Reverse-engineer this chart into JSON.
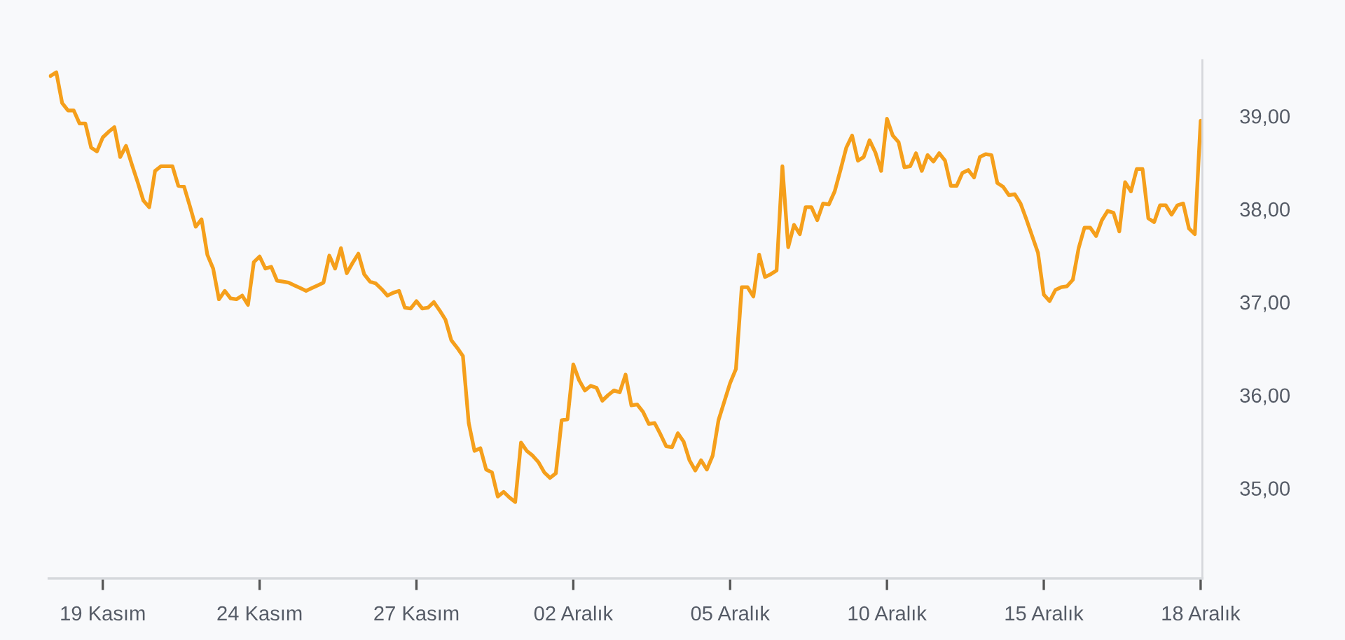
{
  "chart_data": {
    "type": "line",
    "categories": [
      null,
      null,
      null,
      null,
      null,
      null,
      null,
      null,
      null,
      "19 Kasım",
      null,
      null,
      null,
      null,
      null,
      null,
      null,
      null,
      null,
      null,
      null,
      null,
      null,
      null,
      null,
      null,
      null,
      null,
      null,
      null,
      null,
      null,
      null,
      null,
      null,
      null,
      "24 Kasım",
      null,
      null,
      null,
      null,
      null,
      null,
      null,
      null,
      null,
      null,
      null,
      null,
      null,
      null,
      null,
      null,
      null,
      null,
      null,
      null,
      null,
      null,
      null,
      null,
      null,
      null,
      "27 Kasım",
      null,
      null,
      null,
      null,
      null,
      null,
      null,
      null,
      null,
      null,
      null,
      null,
      null,
      null,
      null,
      null,
      null,
      null,
      null,
      null,
      null,
      null,
      null,
      null,
      null,
      null,
      "02 Aralık",
      null,
      null,
      null,
      null,
      null,
      null,
      null,
      null,
      null,
      null,
      null,
      null,
      null,
      null,
      null,
      null,
      null,
      null,
      null,
      null,
      null,
      null,
      null,
      null,
      null,
      null,
      "05 Aralık",
      null,
      null,
      null,
      null,
      null,
      null,
      null,
      null,
      null,
      null,
      null,
      null,
      null,
      null,
      null,
      null,
      null,
      null,
      null,
      null,
      null,
      null,
      null,
      null,
      null,
      null,
      "10 Aralık",
      null,
      null,
      null,
      null,
      null,
      null,
      null,
      null,
      null,
      null,
      null,
      null,
      null,
      null,
      null,
      null,
      null,
      null,
      null,
      null,
      null,
      null,
      null,
      null,
      null,
      null,
      "15 Aralık",
      null,
      null,
      null,
      null,
      null,
      null,
      null,
      null,
      null,
      null,
      null,
      null,
      null,
      null,
      null,
      null,
      null,
      null,
      null,
      null,
      null,
      null,
      null,
      null,
      null,
      null,
      "18 Aralık"
    ],
    "series": [
      {
        "color": "#f59f1b",
        "values": [
          39.43,
          39.47,
          39.14,
          39.06,
          39.06,
          38.92,
          38.92,
          38.66,
          38.62,
          38.77,
          38.83,
          38.88,
          38.56,
          38.68,
          38.48,
          38.29,
          38.09,
          38.02,
          38.41,
          38.46,
          38.46,
          38.46,
          38.25,
          38.24,
          38.03,
          37.81,
          37.89,
          37.51,
          37.36,
          37.03,
          37.12,
          37.04,
          37.03,
          37.07,
          36.97,
          37.43,
          37.49,
          37.36,
          37.38,
          37.23,
          37.22,
          37.21,
          37.18,
          37.15,
          37.12,
          37.15,
          37.18,
          37.21,
          37.5,
          37.36,
          37.58,
          37.31,
          37.42,
          37.52,
          37.3,
          37.22,
          37.2,
          37.14,
          37.07,
          37.1,
          37.12,
          36.94,
          36.93,
          37.01,
          36.93,
          36.94,
          37.0,
          36.91,
          36.81,
          36.59,
          36.51,
          36.42,
          35.7,
          35.4,
          35.43,
          35.2,
          35.17,
          34.91,
          34.96,
          34.9,
          34.85,
          35.49,
          35.4,
          35.35,
          35.28,
          35.17,
          35.11,
          35.16,
          35.73,
          35.74,
          36.33,
          36.16,
          36.05,
          36.1,
          36.08,
          35.94,
          36.0,
          36.05,
          36.03,
          36.22,
          35.89,
          35.9,
          35.82,
          35.69,
          35.7,
          35.58,
          35.45,
          35.44,
          35.59,
          35.5,
          35.3,
          35.19,
          35.3,
          35.2,
          35.35,
          35.73,
          35.93,
          36.13,
          36.28,
          37.16,
          37.16,
          37.06,
          37.51,
          37.27,
          37.3,
          37.34,
          38.46,
          37.59,
          37.83,
          37.73,
          38.02,
          38.02,
          37.88,
          38.06,
          38.05,
          38.19,
          38.42,
          38.66,
          38.79,
          38.52,
          38.56,
          38.74,
          38.61,
          38.41,
          38.97,
          38.79,
          38.72,
          38.45,
          38.46,
          38.6,
          38.41,
          38.58,
          38.51,
          38.6,
          38.52,
          38.25,
          38.25,
          38.39,
          38.42,
          38.34,
          38.56,
          38.59,
          38.58,
          38.28,
          38.24,
          38.15,
          38.16,
          38.06,
          37.89,
          37.71,
          37.53,
          37.08,
          37.01,
          37.13,
          37.16,
          37.17,
          37.24,
          37.58,
          37.8,
          37.8,
          37.71,
          37.88,
          37.98,
          37.96,
          37.76,
          38.29,
          38.19,
          38.43,
          38.43,
          37.9,
          37.86,
          38.04,
          38.04,
          37.94,
          38.04,
          38.06,
          37.79,
          37.73,
          38.95
        ]
      }
    ],
    "ylim": [
      34.03,
      39.6
    ],
    "yticks": [
      {
        "value": 35,
        "label": "35,00"
      },
      {
        "value": 36,
        "label": "36,00"
      },
      {
        "value": 37,
        "label": "37,00"
      },
      {
        "value": 38,
        "label": "38,00"
      },
      {
        "value": 39,
        "label": "39,00"
      }
    ],
    "grid": false
  }
}
